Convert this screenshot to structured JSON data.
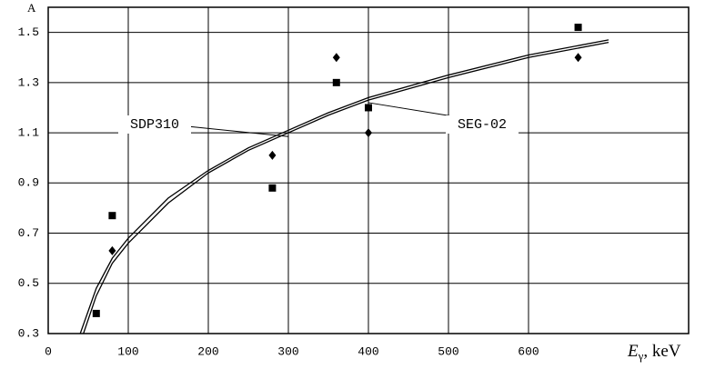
{
  "chart_data": {
    "type": "line",
    "y_label": "A",
    "x_label": {
      "symbol": "E",
      "subscript": "γ",
      "unit": ", keV"
    },
    "xlim": [
      0,
      800
    ],
    "xticks": [
      0,
      100,
      200,
      300,
      400,
      500,
      600
    ],
    "ylim": [
      0.3,
      1.6
    ],
    "yticks": [
      0.3,
      0.5,
      0.7,
      0.9,
      1.1,
      1.3,
      1.5
    ],
    "grid": true,
    "series": [
      {
        "name": "SDP310",
        "style": "line",
        "color": "#000000",
        "x": [
          40,
          60,
          80,
          100,
          150,
          200,
          250,
          300,
          350,
          400,
          500,
          600,
          700
        ],
        "values": [
          0.3,
          0.48,
          0.6,
          0.68,
          0.84,
          0.95,
          1.04,
          1.11,
          1.18,
          1.24,
          1.33,
          1.41,
          1.47
        ]
      },
      {
        "name": "SEG-02",
        "style": "line",
        "color": "#000000",
        "x": [
          44,
          60,
          80,
          100,
          150,
          200,
          250,
          300,
          350,
          400,
          500,
          600,
          700
        ],
        "values": [
          0.3,
          0.45,
          0.58,
          0.66,
          0.82,
          0.94,
          1.03,
          1.1,
          1.17,
          1.23,
          1.32,
          1.4,
          1.46
        ]
      },
      {
        "style": "marker",
        "marker": "square",
        "color": "#000000",
        "x": [
          60,
          80,
          280,
          360,
          400,
          662
        ],
        "values": [
          0.38,
          0.77,
          0.88,
          1.3,
          1.2,
          1.52
        ]
      },
      {
        "style": "marker",
        "marker": "diamond",
        "color": "#000000",
        "x": [
          80,
          280,
          360,
          400,
          662
        ],
        "values": [
          0.63,
          1.01,
          1.4,
          1.1,
          1.4
        ]
      }
    ]
  }
}
